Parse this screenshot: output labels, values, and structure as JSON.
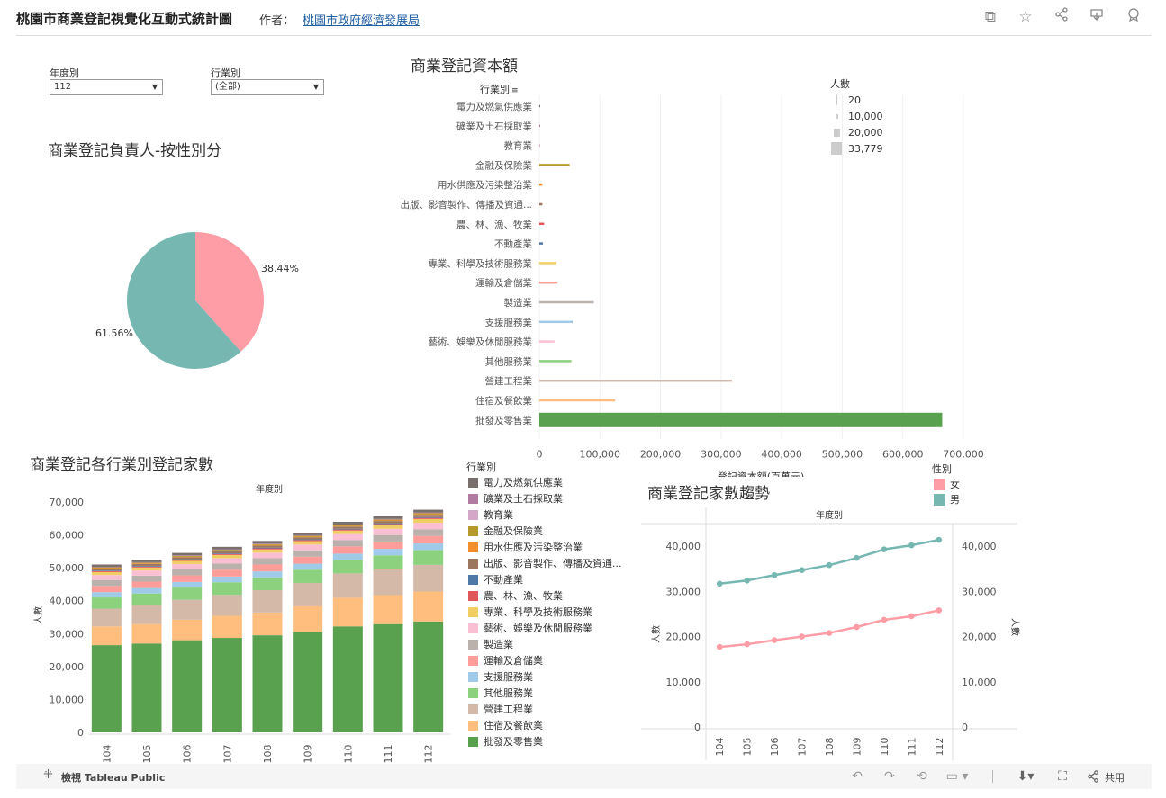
{
  "header": {
    "title": "桃園市商業登記視覺化互動式統計圖",
    "author_label": "作者：",
    "author_name": "桃園市政府經濟發展局"
  },
  "filters": {
    "year": {
      "label": "年度別",
      "value": "112"
    },
    "industry": {
      "label": "行業別",
      "value": "(全部)"
    }
  },
  "pie": {
    "title": "商業登記負責人-按性別分",
    "female_label": "38.44%",
    "male_label": "61.56%",
    "female_value": 38.44,
    "male_value": 61.56,
    "female_color": "#ff9da7",
    "male_color": "#76b7b2"
  },
  "capital": {
    "title": "商業登記資本額",
    "y_header": "行業別",
    "x_label": "登記資本額(百萬元)",
    "size_legend_title": "人數",
    "size_legend": [
      "20",
      "10,000",
      "20,000",
      "33,779"
    ],
    "x_ticks": [
      "0",
      "100,000",
      "200,000",
      "300,000",
      "400,000",
      "500,000",
      "600,000",
      "700,000"
    ],
    "x_max": 700000,
    "rows": [
      {
        "name": "電力及燃氣供應業",
        "value": 200,
        "color": "#79706e"
      },
      {
        "name": "礦業及土石採取業",
        "value": 300,
        "color": "#b07aa1"
      },
      {
        "name": "教育業",
        "value": 500,
        "color": "#d4a6c8"
      },
      {
        "name": "金融及保險業",
        "value": 50000,
        "color": "#b6992d"
      },
      {
        "name": "用水供應及污染整治業",
        "value": 5000,
        "color": "#f28e2b"
      },
      {
        "name": "出版、影音製作、傳播及資通...",
        "value": 5000,
        "color": "#9d7660"
      },
      {
        "name": "農、林、漁、牧業",
        "value": 8000,
        "color": "#e15759"
      },
      {
        "name": "不動產業",
        "value": 6000,
        "color": "#4e79a7"
      },
      {
        "name": "專業、科學及技術服務業",
        "value": 28000,
        "color": "#f1ce63"
      },
      {
        "name": "運輸及倉儲業",
        "value": 30000,
        "color": "#ff9d9a"
      },
      {
        "name": "製造業",
        "value": 90000,
        "color": "#bab0ac"
      },
      {
        "name": "支援服務業",
        "value": 55000,
        "color": "#a0cbe8"
      },
      {
        "name": "藝術、娛樂及休閒服務業",
        "value": 25000,
        "color": "#fabfd2"
      },
      {
        "name": "其他服務業",
        "value": 53000,
        "color": "#8cd17d"
      },
      {
        "name": "營建工程業",
        "value": 318000,
        "color": "#d4b9a9"
      },
      {
        "name": "住宿及餐飲業",
        "value": 125000,
        "color": "#ffbe7d"
      },
      {
        "name": "批發及零售業",
        "value": 665000,
        "color": "#59a14f"
      }
    ]
  },
  "stacked": {
    "title": "商業登記各行業別登記家數",
    "top_label": "年度別",
    "y_label": "人數",
    "y_ticks": [
      "70,000",
      "60,000",
      "50,000",
      "40,000",
      "30,000",
      "20,000",
      "10,000",
      "0"
    ],
    "years": [
      "104",
      "105",
      "106",
      "107",
      "108",
      "109",
      "110",
      "111",
      "112"
    ],
    "legend_title": "行業別",
    "categories": [
      {
        "name": "電力及燃氣供應業",
        "color": "#79706e"
      },
      {
        "name": "礦業及土石採取業",
        "color": "#b07aa1"
      },
      {
        "name": "教育業",
        "color": "#d4a6c8"
      },
      {
        "name": "金融及保險業",
        "color": "#b6992d"
      },
      {
        "name": "用水供應及污染整治業",
        "color": "#f28e2b"
      },
      {
        "name": "出版、影音製作、傳播及資通...",
        "color": "#9d7660"
      },
      {
        "name": "不動產業",
        "color": "#4e79a7"
      },
      {
        "name": "農、林、漁、牧業",
        "color": "#e15759"
      },
      {
        "name": "專業、科學及技術服務業",
        "color": "#f1ce63"
      },
      {
        "name": "藝術、娛樂及休閒服務業",
        "color": "#fabfd2"
      },
      {
        "name": "製造業",
        "color": "#bab0ac"
      },
      {
        "name": "運輸及倉儲業",
        "color": "#ff9d9a"
      },
      {
        "name": "支援服務業",
        "color": "#a0cbe8"
      },
      {
        "name": "其他服務業",
        "color": "#8cd17d"
      },
      {
        "name": "營建工程業",
        "color": "#d4b9a9"
      },
      {
        "name": "住宿及餐飲業",
        "color": "#ffbe7d"
      },
      {
        "name": "批發及零售業",
        "color": "#59a14f"
      }
    ],
    "segments_bottom_up": [
      {
        "name": "批發及零售業",
        "color": "#59a14f",
        "values": [
          26500,
          27000,
          28000,
          28700,
          29500,
          30500,
          32200,
          32900,
          33700
        ]
      },
      {
        "name": "住宿及餐飲業",
        "color": "#ffbe7d",
        "values": [
          5700,
          5900,
          6200,
          6700,
          6900,
          7800,
          8700,
          8800,
          9100
        ]
      },
      {
        "name": "營建工程業",
        "color": "#d4b9a9",
        "values": [
          5400,
          5800,
          6100,
          6400,
          6800,
          7100,
          7400,
          7800,
          8100
        ]
      },
      {
        "name": "其他服務業",
        "color": "#8cd17d",
        "values": [
          3400,
          3500,
          3700,
          3800,
          3900,
          4000,
          4100,
          4300,
          4500
        ]
      },
      {
        "name": "支援服務業",
        "color": "#a0cbe8",
        "values": [
          1600,
          1650,
          1700,
          1750,
          1800,
          1850,
          1900,
          1950,
          2000
        ]
      },
      {
        "name": "運輸及倉儲業",
        "color": "#ff9d9a",
        "values": [
          1900,
          1950,
          2000,
          2050,
          2100,
          2150,
          2200,
          2250,
          2300
        ]
      },
      {
        "name": "製造業",
        "color": "#bab0ac",
        "values": [
          1800,
          1820,
          1850,
          1870,
          1900,
          1920,
          1950,
          1980,
          2000
        ]
      },
      {
        "name": "藝術、娛樂及休閒服務業",
        "color": "#fabfd2",
        "values": [
          1500,
          1550,
          1600,
          1650,
          1700,
          1750,
          1800,
          1900,
          2000
        ]
      },
      {
        "name": "專業、科學及技術服務業",
        "color": "#f1ce63",
        "values": [
          900,
          920,
          950,
          980,
          1000,
          1030,
          1060,
          1100,
          1150
        ]
      },
      {
        "name": "農、林、漁、牧業",
        "color": "#e15759",
        "values": [
          300,
          300,
          310,
          310,
          320,
          320,
          330,
          330,
          340
        ]
      },
      {
        "name": "不動產業",
        "color": "#4e79a7",
        "values": [
          200,
          200,
          210,
          210,
          220,
          220,
          230,
          230,
          240
        ]
      },
      {
        "name": "出版、影音製作、傳播及資通...",
        "color": "#9d7660",
        "values": [
          550,
          560,
          580,
          600,
          620,
          640,
          660,
          680,
          700
        ]
      },
      {
        "name": "用水供應及污染整治業",
        "color": "#f28e2b",
        "values": [
          150,
          150,
          160,
          160,
          170,
          170,
          180,
          180,
          190
        ]
      },
      {
        "name": "金融及保險業",
        "color": "#b6992d",
        "values": [
          300,
          310,
          320,
          330,
          340,
          350,
          360,
          370,
          380
        ]
      },
      {
        "name": "教育業",
        "color": "#d4a6c8",
        "values": [
          60,
          60,
          60,
          60,
          60,
          60,
          60,
          60,
          60
        ]
      },
      {
        "name": "礦業及土石採取業",
        "color": "#b07aa1",
        "values": [
          40,
          40,
          40,
          40,
          40,
          40,
          40,
          40,
          40
        ]
      },
      {
        "name": "電力及燃氣供應業",
        "color": "#79706e",
        "values": [
          700,
          720,
          740,
          760,
          780,
          800,
          820,
          840,
          860
        ]
      }
    ],
    "y_max": 70000
  },
  "trend": {
    "title": "商業登記家數趨勢",
    "top_label": "年度別",
    "y_label": "人數",
    "legend_title": "性別",
    "legend": [
      {
        "name": "女",
        "color": "#ff9da7"
      },
      {
        "name": "男",
        "color": "#76b7b2"
      }
    ],
    "y_ticks": [
      "40,000",
      "30,000",
      "20,000",
      "10,000",
      "0"
    ],
    "years": [
      "104",
      "105",
      "106",
      "107",
      "108",
      "109",
      "110",
      "111",
      "112"
    ],
    "male": [
      31700,
      32400,
      33600,
      34700,
      35800,
      37400,
      39300,
      40200,
      41400
    ],
    "female": [
      17700,
      18300,
      19200,
      20000,
      20800,
      22100,
      23700,
      24500,
      25800
    ],
    "y_max": 45000
  },
  "footer": {
    "tableau_label": "檢視 Tableau Public",
    "share_label": "共用"
  },
  "chart_data": [
    {
      "type": "pie",
      "title": "商業登記負責人-按性別分",
      "categories": [
        "女",
        "男"
      ],
      "values": [
        38.44,
        61.56
      ]
    },
    {
      "type": "bar",
      "title": "商業登記資本額",
      "xlabel": "登記資本額(百萬元)",
      "ylabel": "行業別",
      "xlim": [
        0,
        700000
      ]
    },
    {
      "type": "bar",
      "title": "商業登記各行業別登記家數",
      "xlabel": "年度別",
      "ylabel": "人數",
      "ylim": [
        0,
        70000
      ]
    },
    {
      "type": "line",
      "title": "商業登記家數趨勢",
      "xlabel": "年度別",
      "ylabel": "人數",
      "ylim": [
        0,
        45000
      ]
    }
  ]
}
